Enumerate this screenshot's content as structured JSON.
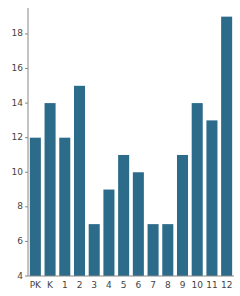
{
  "chart_data": {
    "type": "bar",
    "categories": [
      "PK",
      "K",
      "1",
      "2",
      "3",
      "4",
      "5",
      "6",
      "7",
      "8",
      "9",
      "10",
      "11",
      "12"
    ],
    "values": [
      12,
      14,
      12,
      15,
      7,
      9,
      11,
      10,
      7,
      7,
      11,
      14,
      13,
      19
    ],
    "color": "#2d6b8a",
    "ylim": [
      4,
      19.5
    ],
    "yticks": [
      4,
      6,
      8,
      10,
      12,
      14,
      16,
      18
    ],
    "grid": false
  }
}
